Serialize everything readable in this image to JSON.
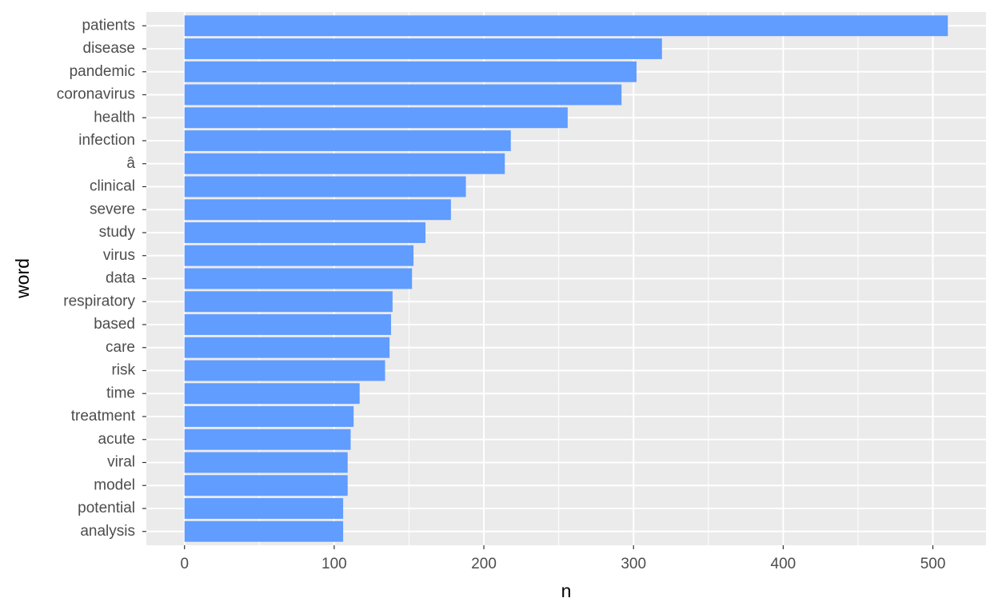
{
  "chart_data": {
    "type": "bar",
    "orientation": "horizontal",
    "x_label": "n",
    "y_label": "word",
    "categories": [
      "patients",
      "disease",
      "pandemic",
      "coronavirus",
      "health",
      "infection",
      "â",
      "clinical",
      "severe",
      "study",
      "virus",
      "data",
      "respiratory",
      "based",
      "care",
      "risk",
      "time",
      "treatment",
      "acute",
      "viral",
      "model",
      "potential",
      "analysis"
    ],
    "values": [
      510,
      319,
      302,
      292,
      256,
      218,
      214,
      188,
      178,
      161,
      153,
      152,
      139,
      138,
      137,
      134,
      117,
      113,
      111,
      109,
      109,
      106,
      106
    ],
    "color": "#619cff",
    "xlim": [
      -25.5,
      535.5
    ],
    "xticks": [
      0,
      100,
      200,
      300,
      400,
      500
    ],
    "grid": true
  }
}
